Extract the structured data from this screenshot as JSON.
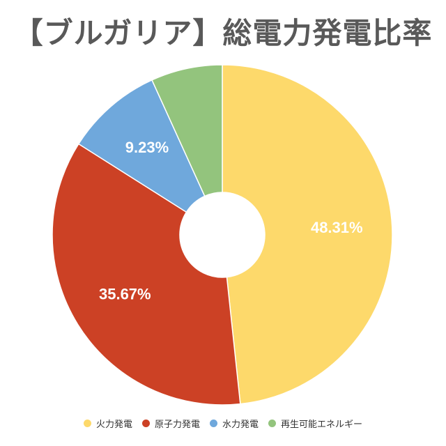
{
  "title": "【ブルガリア】総電力発電比率",
  "chart_data": {
    "type": "pie",
    "donut": true,
    "categories": [
      "火力発電",
      "原子力発電",
      "水力発電",
      "再生可能エネルギー"
    ],
    "values": [
      48.31,
      35.67,
      9.23,
      6.79
    ],
    "data_labels": [
      "48.31%",
      "35.67%",
      "9.23%",
      ""
    ],
    "colors": [
      "#fdd96b",
      "#cc4125",
      "#6fa8dc",
      "#93c47d"
    ],
    "legend_position": "bottom",
    "start_angle": "top",
    "direction": "clockwise"
  }
}
